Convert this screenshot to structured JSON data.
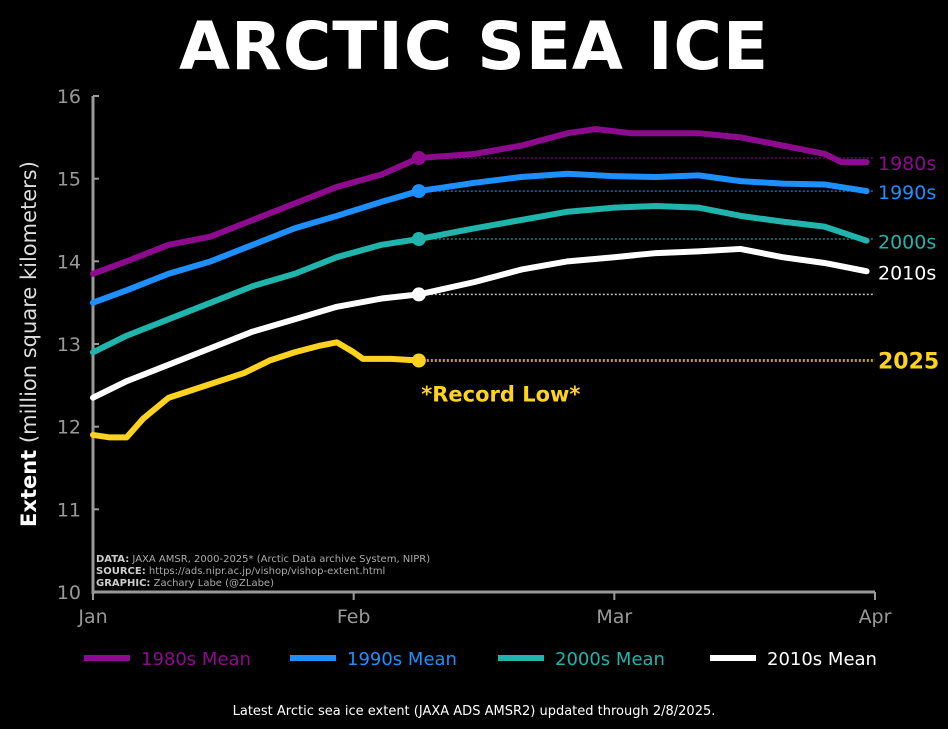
{
  "title": "ARCTIC SEA ICE",
  "footer": "Latest Arctic sea ice extent (JAXA ADS AMSR2) updated through 2/8/2025.",
  "credits": [
    {
      "label": "DATA:",
      "text": "JAXA AMSR, 2000-2025* (Arctic Data archive System, NIPR)"
    },
    {
      "label": "SOURCE:",
      "text": "https://ads.nipr.ac.jp/vishop/vishop-extent.html"
    },
    {
      "label": "GRAPHIC:",
      "text": "Zachary Labe (@ZLabe)"
    }
  ],
  "chart_data": {
    "type": "line",
    "ylabel_bold": "Extent",
    "ylabel_rest": "(million square kilometers)",
    "ylim": [
      10,
      16
    ],
    "yticks": [
      10,
      11,
      12,
      13,
      14,
      15,
      16
    ],
    "xticks": [
      {
        "label": "Jan",
        "day": 1
      },
      {
        "label": "Feb",
        "day": 32
      },
      {
        "label": "Mar",
        "day": 60
      },
      {
        "label": "Apr",
        "day": 91
      }
    ],
    "latest_day": 39,
    "annotation": "*Record Low*",
    "series": [
      {
        "name": "1980s Mean",
        "end_label": "1980s",
        "color": "#8e0a8e",
        "x": [
          1,
          5,
          10,
          15,
          20,
          25,
          30,
          35,
          39,
          45,
          50,
          55,
          58,
          62,
          65,
          70,
          75,
          80,
          85,
          87,
          90
        ],
        "y": [
          13.85,
          14.0,
          14.2,
          14.3,
          14.5,
          14.7,
          14.9,
          15.05,
          15.25,
          15.3,
          15.4,
          15.55,
          15.6,
          15.55,
          15.55,
          15.55,
          15.5,
          15.4,
          15.3,
          15.2,
          15.2
        ]
      },
      {
        "name": "1990s Mean",
        "end_label": "1990s",
        "color": "#1e8fff",
        "x": [
          1,
          5,
          10,
          15,
          20,
          25,
          30,
          35,
          39,
          45,
          50,
          55,
          60,
          65,
          70,
          75,
          80,
          85,
          90
        ],
        "y": [
          13.5,
          13.65,
          13.85,
          14.0,
          14.2,
          14.4,
          14.55,
          14.72,
          14.85,
          14.95,
          15.02,
          15.06,
          15.03,
          15.02,
          15.04,
          14.97,
          14.94,
          14.93,
          14.85
        ]
      },
      {
        "name": "2000s Mean",
        "end_label": "2000s",
        "color": "#1fb5ad",
        "x": [
          1,
          5,
          10,
          15,
          20,
          25,
          30,
          35,
          39,
          45,
          50,
          55,
          60,
          65,
          70,
          75,
          80,
          85,
          90
        ],
        "y": [
          12.9,
          13.1,
          13.3,
          13.5,
          13.7,
          13.85,
          14.05,
          14.2,
          14.27,
          14.4,
          14.5,
          14.6,
          14.65,
          14.67,
          14.65,
          14.55,
          14.48,
          14.42,
          14.25
        ]
      },
      {
        "name": "2010s Mean",
        "end_label": "2010s",
        "color": "#ffffff",
        "x": [
          1,
          5,
          10,
          15,
          20,
          25,
          30,
          35,
          39,
          45,
          50,
          55,
          60,
          65,
          70,
          75,
          80,
          85,
          90
        ],
        "y": [
          12.35,
          12.55,
          12.75,
          12.95,
          13.15,
          13.3,
          13.45,
          13.55,
          13.6,
          13.75,
          13.9,
          14.0,
          14.05,
          14.1,
          14.12,
          14.15,
          14.05,
          13.98,
          13.88
        ]
      },
      {
        "end_label": "2025",
        "color": "#ffd21f",
        "x": [
          1,
          3,
          5,
          7,
          10,
          13,
          16,
          19,
          22,
          25,
          28,
          30,
          32,
          33,
          36,
          39
        ],
        "y": [
          11.9,
          11.87,
          11.87,
          12.1,
          12.35,
          12.45,
          12.55,
          12.65,
          12.8,
          12.9,
          12.98,
          13.02,
          12.9,
          12.82,
          12.82,
          12.8
        ]
      }
    ],
    "legend_position": "bottom"
  }
}
